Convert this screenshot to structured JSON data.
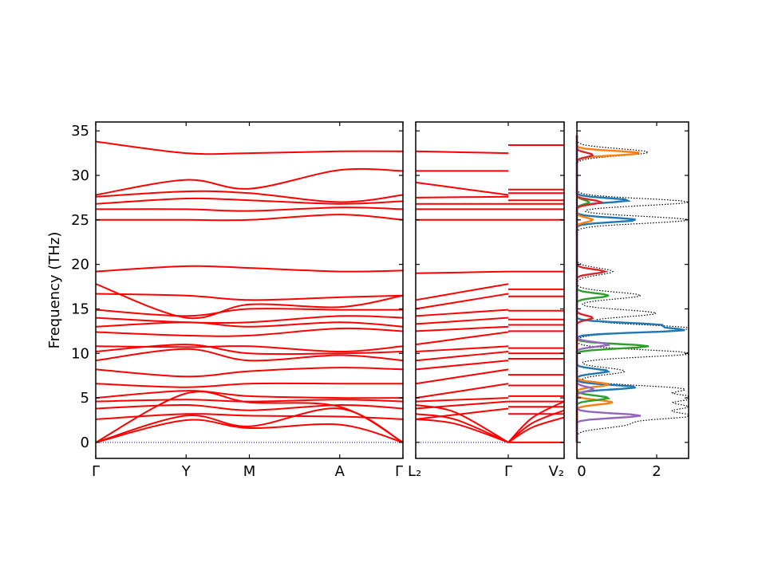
{
  "chart_data": {
    "type": "line",
    "ylabel": "Frequency (THz)",
    "ylim": [
      -1.8,
      36
    ],
    "yticks": [
      0,
      5,
      10,
      15,
      20,
      25,
      30,
      35
    ],
    "colors": {
      "band": "#ff0000",
      "zero": "#0000aa",
      "total_dos": "#000000",
      "pdos": [
        "#1f77b4",
        "#ff7f0e",
        "#2ca02c",
        "#d62728",
        "#9467bd"
      ]
    },
    "panels": [
      {
        "name": "band-structure-main",
        "xticks": [
          "Γ",
          "Y",
          "M",
          "A",
          "Γ"
        ],
        "segment_bounds": [
          0,
          1,
          1.7,
          2.7,
          3.4
        ],
        "bands_approx": [
          {
            "k": [
              0,
              1,
              1.7,
              2.7,
              3.4
            ],
            "f": [
              33.8,
              32.5,
              32.5,
              32.7,
              32.7
            ]
          },
          {
            "k": [
              0,
              1,
              1.7,
              2.7,
              3.4
            ],
            "f": [
              27.8,
              29.5,
              28.5,
              30.6,
              30.5
            ]
          },
          {
            "k": [
              0,
              1,
              1.7,
              2.7,
              3.4
            ],
            "f": [
              27.6,
              28.2,
              28.0,
              27.0,
              27.8
            ]
          },
          {
            "k": [
              0,
              1,
              1.7,
              2.7,
              3.4
            ],
            "f": [
              26.8,
              27.4,
              27.2,
              26.8,
              27.1
            ]
          },
          {
            "k": [
              0,
              1,
              1.7,
              2.7,
              3.4
            ],
            "f": [
              26.2,
              26.2,
              26.0,
              26.4,
              26.2
            ]
          },
          {
            "k": [
              0,
              1,
              1.7,
              2.7,
              3.4
            ],
            "f": [
              25.0,
              25.0,
              25.0,
              25.6,
              25.0
            ]
          },
          {
            "k": [
              0,
              1,
              1.7,
              2.7,
              3.4
            ],
            "f": [
              19.2,
              19.8,
              19.6,
              19.2,
              19.3
            ]
          },
          {
            "k": [
              0,
              1,
              1.7,
              2.7,
              3.4
            ],
            "f": [
              17.8,
              14.0,
              15.5,
              15.2,
              16.5
            ]
          },
          {
            "k": [
              0,
              1,
              1.7,
              2.7,
              3.4
            ],
            "f": [
              16.7,
              16.5,
              16.0,
              16.3,
              16.5
            ]
          },
          {
            "k": [
              0,
              1,
              1.7,
              2.7,
              3.4
            ],
            "f": [
              14.9,
              14.2,
              15.0,
              14.9,
              14.9
            ]
          },
          {
            "k": [
              0,
              1,
              1.7,
              2.7,
              3.4
            ],
            "f": [
              14.0,
              13.5,
              13.5,
              14.2,
              14.0
            ]
          },
          {
            "k": [
              0,
              1,
              1.7,
              2.7,
              3.4
            ],
            "f": [
              13.0,
              13.5,
              13.0,
              13.5,
              13.0
            ]
          },
          {
            "k": [
              0,
              1,
              1.7,
              2.7,
              3.4
            ],
            "f": [
              12.4,
              12.0,
              12.0,
              12.8,
              12.5
            ]
          },
          {
            "k": [
              0,
              1,
              1.7,
              2.7,
              3.4
            ],
            "f": [
              10.8,
              10.7,
              10.8,
              10.2,
              10.8
            ]
          },
          {
            "k": [
              0,
              1,
              1.7,
              2.7,
              3.4
            ],
            "f": [
              10.2,
              11.0,
              10.0,
              10.0,
              10.2
            ]
          },
          {
            "k": [
              0,
              1,
              1.7,
              2.7,
              3.4
            ],
            "f": [
              9.2,
              10.5,
              9.2,
              9.8,
              9.2
            ]
          },
          {
            "k": [
              0,
              1,
              1.7,
              2.7,
              3.4
            ],
            "f": [
              8.2,
              7.4,
              8.0,
              8.4,
              8.2
            ]
          },
          {
            "k": [
              0,
              1,
              1.7,
              2.7,
              3.4
            ],
            "f": [
              6.6,
              6.2,
              6.6,
              6.6,
              6.6
            ]
          },
          {
            "k": [
              0,
              1,
              1.7,
              2.7,
              3.4
            ],
            "f": [
              5.0,
              5.8,
              5.2,
              5.0,
              5.0
            ]
          },
          {
            "k": [
              0,
              1,
              1.7,
              2.7,
              3.4
            ],
            "f": [
              4.6,
              4.8,
              4.6,
              4.8,
              4.6
            ]
          },
          {
            "k": [
              0,
              1,
              1.7,
              2.7,
              3.4
            ],
            "f": [
              3.8,
              4.2,
              3.6,
              4.2,
              3.8
            ]
          },
          {
            "k": [
              0,
              1,
              1.7,
              2.7,
              3.4
            ],
            "f": [
              2.6,
              3.2,
              3.0,
              2.9,
              2.6
            ]
          },
          {
            "k": [
              0,
              1,
              1.7,
              2.7,
              3.4
            ],
            "f": [
              0.0,
              5.5,
              4.5,
              4.0,
              0.0
            ]
          },
          {
            "k": [
              0,
              1,
              1.7,
              2.7,
              3.4
            ],
            "f": [
              0.0,
              3.0,
              1.8,
              3.8,
              0.0
            ]
          },
          {
            "k": [
              0,
              1,
              1.7,
              2.7,
              3.4
            ],
            "f": [
              0.0,
              2.5,
              1.6,
              2.0,
              0.0
            ]
          }
        ]
      },
      {
        "name": "band-structure-secondary",
        "xticks": [
          "L₂",
          "Γ",
          "V₂"
        ],
        "segment_bounds": [
          0,
          1,
          0.6
        ],
        "bands_left_approx": [
          32.7,
          30.5,
          29.2,
          27.5,
          26.8,
          26.2,
          25.0,
          19.0,
          16.0,
          15.0,
          14.2,
          13.3,
          12.5,
          11.0,
          10.2,
          9.2,
          8.2,
          6.6,
          5.0,
          4.6,
          3.8,
          2.6
        ],
        "bands_gamma_approx": [
          32.5,
          30.5,
          27.8,
          27.6,
          26.8,
          26.2,
          25.0,
          19.2,
          17.8,
          16.7,
          14.9,
          14.0,
          13.0,
          12.4,
          10.8,
          10.2,
          9.2,
          8.2,
          6.6,
          5.0,
          4.6,
          3.8,
          2.6,
          0.0
        ],
        "bands_right_approx": [
          33.4,
          28.4,
          28.0,
          27.2,
          26.8,
          26.2,
          25.0,
          19.2,
          17.2,
          16.4,
          14.8,
          13.8,
          13.2,
          12.5,
          10.6,
          10.0,
          9.4,
          7.6,
          6.4,
          5.2,
          4.6,
          4.0,
          3.2,
          0.0
        ]
      },
      {
        "name": "dos",
        "xticks": [
          "0",
          "2"
        ],
        "xlim": [
          0,
          2.8
        ],
        "total_dos_peaks_approx": [
          [
            1.2,
            2.0
          ],
          [
            2.8,
            3.0
          ],
          [
            2.6,
            4.0
          ],
          [
            2.9,
            5.0
          ],
          [
            2.6,
            6.0
          ],
          [
            1.2,
            8.0
          ],
          [
            2.9,
            10.0
          ],
          [
            2.9,
            12.8
          ],
          [
            2.0,
            14.5
          ],
          [
            1.6,
            16.5
          ],
          [
            0.9,
            19.2
          ],
          [
            2.8,
            25.0
          ],
          [
            2.8,
            27.0
          ],
          [
            1.8,
            32.6
          ]
        ],
        "pdos_peaks_approx": [
          {
            "color_index": 0,
            "peaks": [
              [
                1.5,
                6.2
              ],
              [
                0.8,
                8.0
              ],
              [
                2.6,
                12.6
              ],
              [
                2.0,
                13.2
              ],
              [
                1.5,
                25.0
              ],
              [
                1.3,
                27.2
              ]
            ]
          },
          {
            "color_index": 1,
            "peaks": [
              [
                0.9,
                4.5
              ],
              [
                0.8,
                6.5
              ],
              [
                1.6,
                32.5
              ],
              [
                0.4,
                25.0
              ]
            ]
          },
          {
            "color_index": 2,
            "peaks": [
              [
                1.8,
                10.8
              ],
              [
                0.8,
                16.5
              ],
              [
                0.8,
                5.0
              ],
              [
                0.3,
                27.0
              ]
            ]
          },
          {
            "color_index": 3,
            "peaks": [
              [
                0.7,
                19.2
              ],
              [
                0.4,
                14.0
              ],
              [
                0.6,
                27.0
              ],
              [
                0.4,
                32.3
              ]
            ]
          },
          {
            "color_index": 4,
            "peaks": [
              [
                1.6,
                3.0
              ],
              [
                0.8,
                11.0
              ],
              [
                0.4,
                6.0
              ]
            ]
          }
        ]
      }
    ]
  }
}
